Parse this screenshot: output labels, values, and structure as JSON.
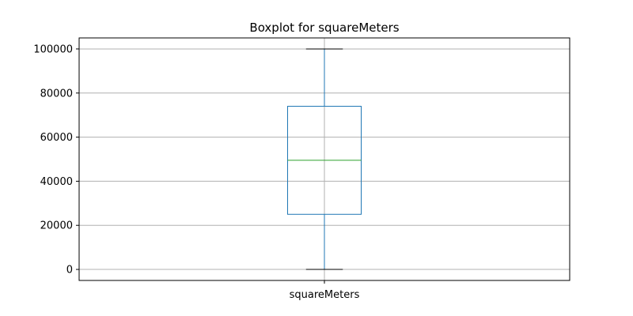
{
  "chart_data": {
    "type": "box",
    "title": "Boxplot for squareMeters",
    "xlabel": "",
    "ylabel": "",
    "categories": [
      "squareMeters"
    ],
    "series": [
      {
        "whisker_low": 0,
        "q1": 25000,
        "median": 49500,
        "q3": 74000,
        "whisker_high": 100000
      }
    ],
    "ylim": [
      -5000,
      105000
    ],
    "yticks": [
      0,
      20000,
      40000,
      60000,
      80000,
      100000
    ],
    "ytick_labels": [
      "0",
      "20000",
      "40000",
      "60000",
      "80000",
      "100000"
    ],
    "grid": true,
    "colors": {
      "box": "#1f77b4",
      "median": "#2ca02c",
      "whisker": "#1f77b4",
      "cap": "#000000",
      "grid": "#b0b0b0",
      "axes": "#000000"
    }
  }
}
